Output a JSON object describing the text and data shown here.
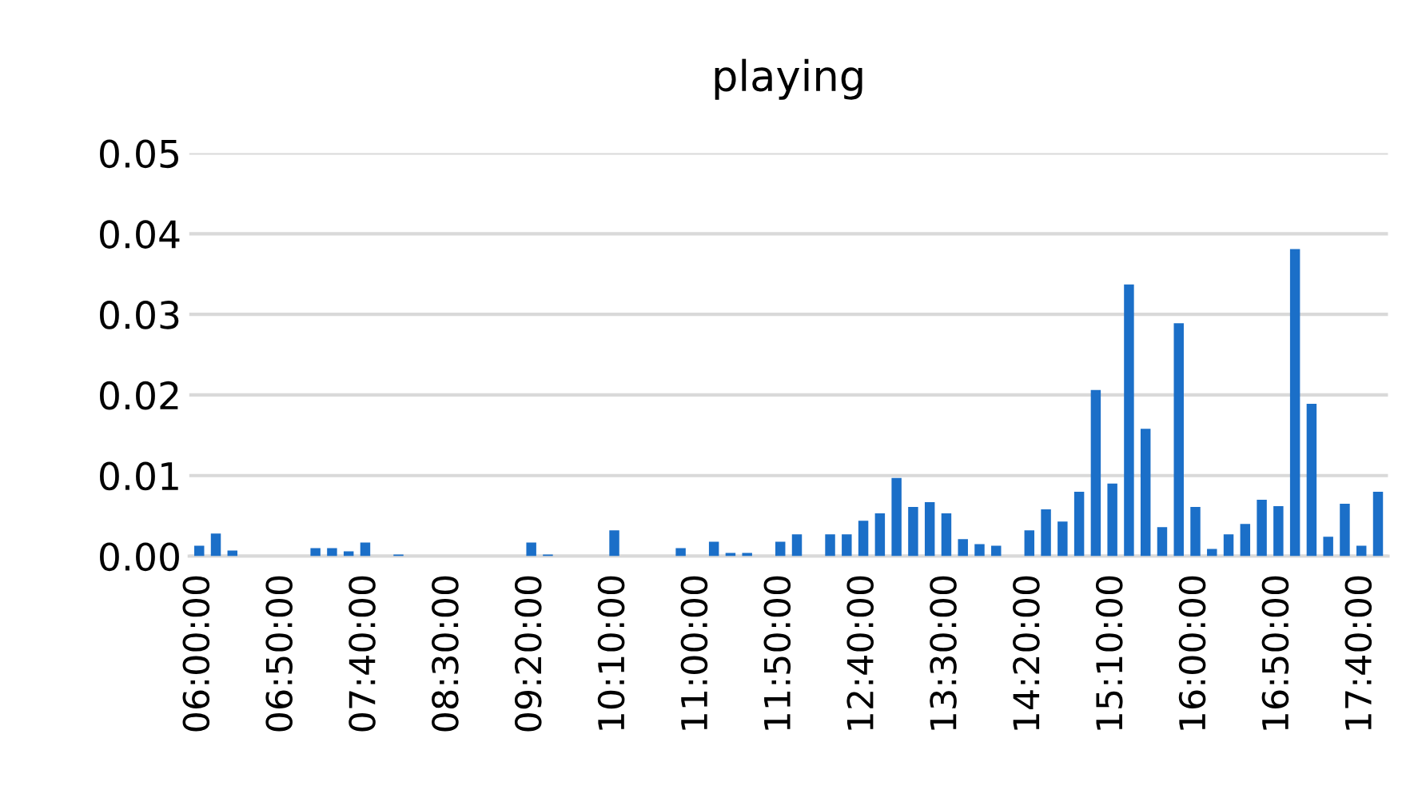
{
  "chart_data": {
    "type": "bar",
    "title": "playing",
    "categories": [
      "06:00:00",
      null,
      null,
      null,
      null,
      "06:50:00",
      null,
      null,
      null,
      null,
      "07:40:00",
      null,
      null,
      null,
      null,
      "08:30:00",
      null,
      null,
      null,
      null,
      "09:20:00",
      null,
      null,
      null,
      null,
      "10:10:00",
      null,
      null,
      null,
      null,
      "11:00:00",
      null,
      null,
      null,
      null,
      "11:50:00",
      null,
      null,
      null,
      null,
      "12:40:00",
      null,
      null,
      null,
      null,
      "13:30:00",
      null,
      null,
      null,
      null,
      "14:20:00",
      null,
      null,
      null,
      null,
      "15:10:00",
      null,
      null,
      null,
      null,
      "16:00:00",
      null,
      null,
      null,
      null,
      "16:50:00",
      null,
      null,
      null,
      null,
      "17:40:00",
      null
    ],
    "series": [
      {
        "color": "#1b6fc8",
        "values": [
          0.0013,
          0.0028,
          0.0007,
          0,
          0,
          0,
          0,
          0.001,
          0.001,
          0.0006,
          0.0017,
          null,
          0.0002,
          0,
          0,
          0,
          0,
          0,
          0,
          0,
          0.0017,
          0.0002,
          0,
          null,
          0,
          0.0032,
          0,
          0,
          0,
          0.001,
          0,
          0.0018,
          0.0004,
          0.0004,
          0,
          0.0018,
          0.0027,
          0,
          0.0027,
          0.0027,
          0.0044,
          0.0053,
          0.0097,
          0.0061,
          0.0067,
          0.0053,
          0.0021,
          0.0015,
          0.0013,
          0,
          0.0032,
          0.0058,
          0.0043,
          0.008,
          0.0206,
          0.009,
          0.0337,
          0.0158,
          0.0036,
          0.0289,
          0.0061,
          0.0009,
          0.0027,
          0.004,
          0.007,
          0.0062,
          0.0381,
          0.0189,
          0.0024,
          0.0065,
          0.0013,
          0.008
        ]
      }
    ],
    "ylim": [
      0,
      0.05
    ],
    "yticks": [
      {
        "value": 0,
        "label": "0.00"
      },
      {
        "value": 0.01,
        "label": "0.01"
      },
      {
        "value": 0.02,
        "label": "0.02"
      },
      {
        "value": 0.03,
        "label": "0.03"
      },
      {
        "value": 0.04,
        "label": "0.04"
      },
      {
        "value": 0.05,
        "label": "0.05"
      }
    ],
    "grid": "y",
    "legend": false
  }
}
